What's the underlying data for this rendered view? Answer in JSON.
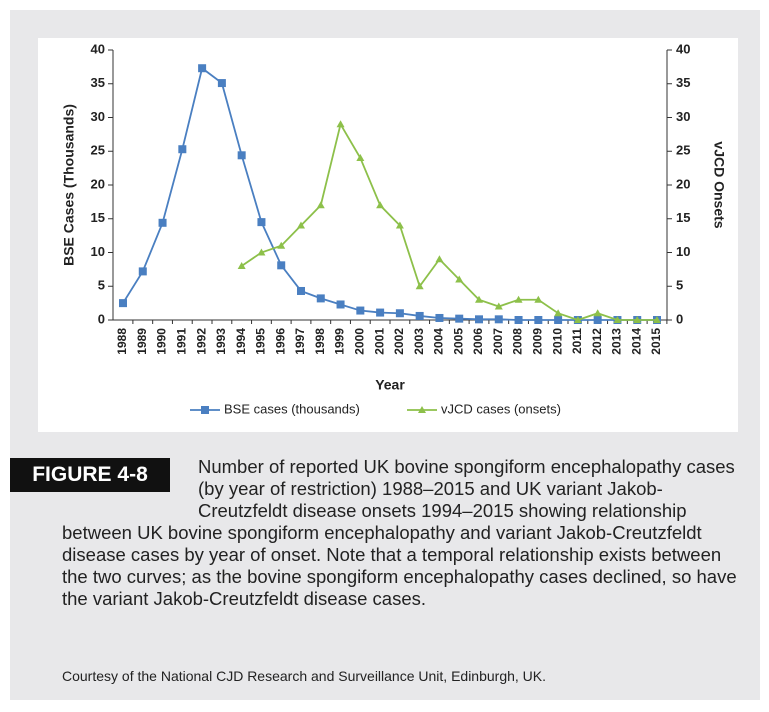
{
  "chart_data": {
    "type": "line",
    "x_label": "Year",
    "y_label": "BSE Cases (Thousands)",
    "y2_label": "vJCD Onsets",
    "categories": [
      "1988",
      "1989",
      "1990",
      "1991",
      "1992",
      "1993",
      "1994",
      "1995",
      "1996",
      "1997",
      "1998",
      "1999",
      "2000",
      "2001",
      "2002",
      "2003",
      "2004",
      "2005",
      "2006",
      "2007",
      "2008",
      "2009",
      "2010",
      "2011",
      "2012",
      "2013",
      "2014",
      "2015"
    ],
    "series": [
      {
        "name": "BSE cases (thousands)",
        "color": "#4a7fc1",
        "marker": "square",
        "values": [
          2.5,
          7.2,
          14.4,
          25.3,
          37.3,
          35.1,
          24.4,
          14.5,
          8.1,
          4.3,
          3.2,
          2.3,
          1.4,
          1.1,
          1.0,
          0.6,
          0.3,
          0.2,
          0.1,
          0.1,
          0,
          0,
          0,
          0,
          0,
          0,
          0,
          0
        ]
      },
      {
        "name": "vJCD cases (onsets)",
        "color": "#8dc04a",
        "marker": "triangle",
        "axis": "y2",
        "values": [
          null,
          null,
          null,
          null,
          null,
          null,
          8,
          10,
          11,
          14,
          17,
          29,
          24,
          17,
          14,
          5,
          9,
          6,
          3,
          2,
          3,
          3,
          1,
          0,
          1,
          0,
          0,
          0
        ]
      }
    ],
    "ylim": [
      0,
      40
    ],
    "yticks": [
      0,
      5,
      10,
      15,
      20,
      25,
      30,
      35,
      40
    ],
    "y2lim": [
      0,
      40
    ],
    "y2ticks": [
      0,
      5,
      10,
      15,
      20,
      25,
      30,
      35,
      40
    ],
    "grid": false,
    "legend": "bottom"
  },
  "figure": {
    "label": "FIGURE 4-8",
    "caption": "Number of reported UK bovine spongiform encephalopathy cases (by year of restriction) 1988–2015 and UK variant Jakob-Creutzfeldt disease onsets 1994–2015 showing relationship between UK bovine spongiform encephalopathy and variant Jakob-Creutzfeldt disease cases by year of onset. Note that a temporal relationship exists between the two curves; as the bovine spongiform encephalopathy cases declined, so have the variant Jakob-Creutzfeldt disease cases.",
    "credit": "Courtesy of the National CJD Research and Surveillance Unit, Edinburgh, UK."
  }
}
